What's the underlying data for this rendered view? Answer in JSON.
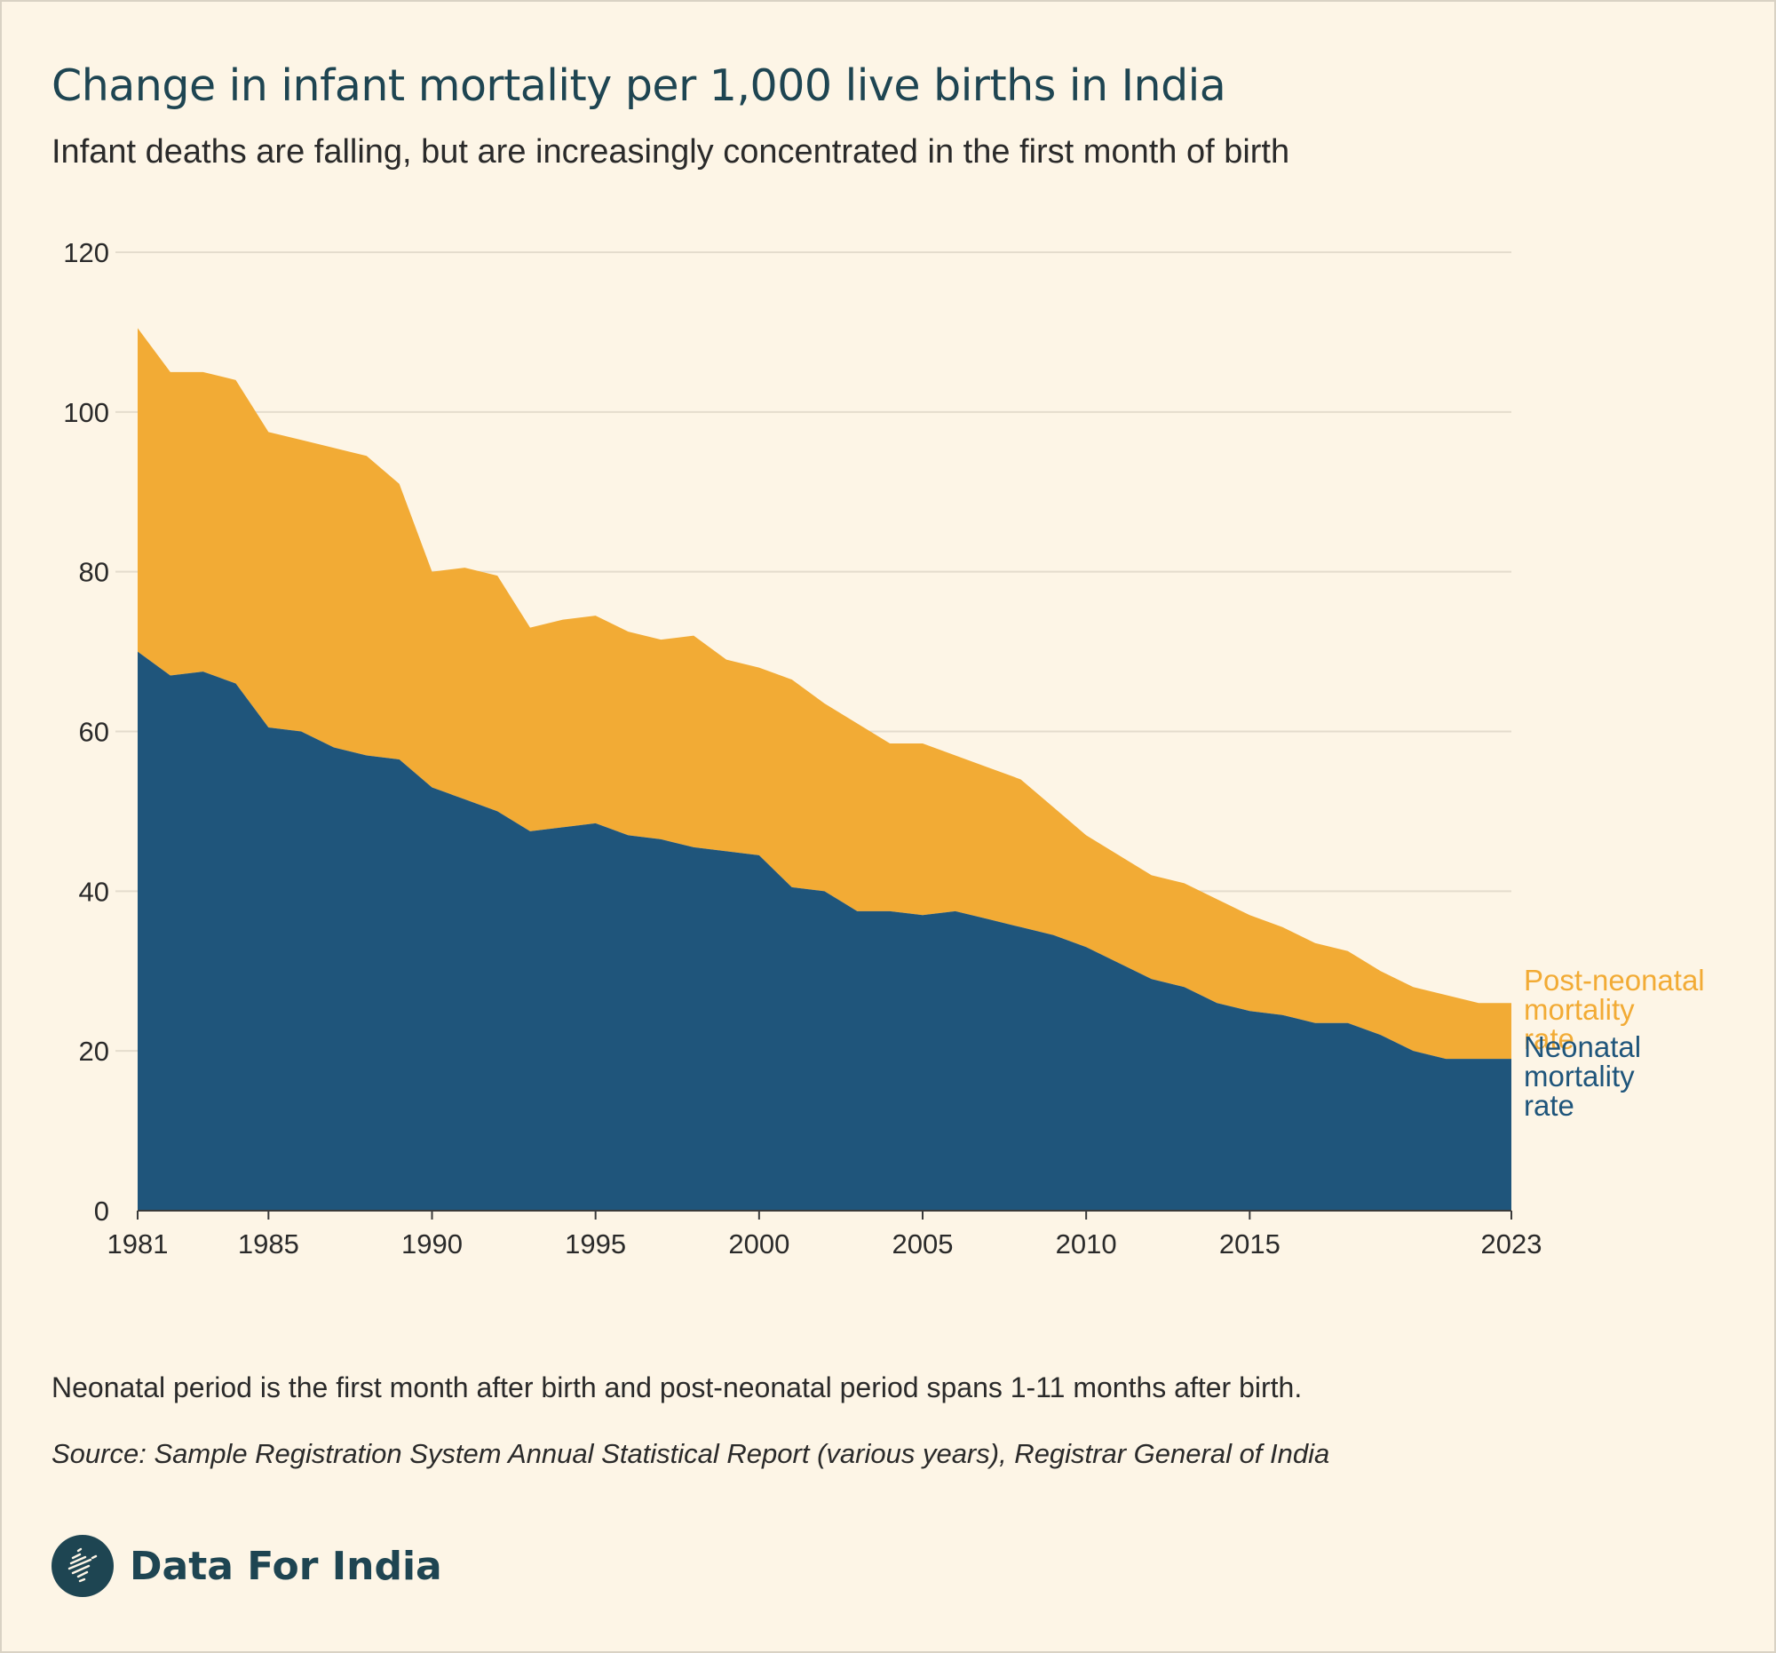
{
  "header": {
    "title": "Change in infant mortality per 1,000 live births in India",
    "subtitle": "Infant deaths are falling, but are increasingly concentrated in the first month of birth"
  },
  "footer": {
    "note": "Neonatal period is the first month after birth and post-neonatal period spans 1-11 months after birth.",
    "source": "Source: Sample Registration System Annual Statistical Report (various years), Registrar General of India",
    "brand": "Data For India",
    "brand_icon": "india-map-logo-icon"
  },
  "colors": {
    "background": "#fdf5e6",
    "neonatal": "#1f557b",
    "post_neonatal": "#f2ab35",
    "grid": "#e4dccd",
    "text": "#2a2a2a"
  },
  "chart_data": {
    "type": "area",
    "stacked": true,
    "title": "Change in infant mortality per 1,000 live births in India",
    "xlabel": "",
    "ylabel": "",
    "ylim": [
      0,
      120
    ],
    "xlim": [
      1981,
      2023
    ],
    "y_ticks": [
      0,
      20,
      40,
      60,
      80,
      100,
      120
    ],
    "x_ticks": [
      "1981",
      "1985",
      "1990",
      "1995",
      "2000",
      "2005",
      "2010",
      "2015",
      "2023"
    ],
    "grid": true,
    "x": [
      1981,
      1982,
      1983,
      1984,
      1985,
      1986,
      1987,
      1988,
      1989,
      1990,
      1991,
      1992,
      1993,
      1994,
      1995,
      1996,
      1997,
      1998,
      1999,
      2000,
      2001,
      2002,
      2003,
      2004,
      2005,
      2006,
      2007,
      2008,
      2009,
      2010,
      2011,
      2012,
      2013,
      2014,
      2015,
      2016,
      2017,
      2018,
      2019,
      2020,
      2021,
      2022,
      2023
    ],
    "series": [
      {
        "name": "Neonatal mortality rate",
        "label_lines": [
          "Neonatal",
          "mortality",
          "rate"
        ],
        "values": [
          70,
          67,
          67.5,
          66,
          60.5,
          60,
          58,
          57,
          56.5,
          53,
          51.5,
          50,
          47.5,
          48,
          48.5,
          47,
          46.5,
          45.5,
          45,
          44.5,
          40.5,
          40,
          37.5,
          37.5,
          37,
          37.5,
          36.5,
          35.5,
          34.5,
          33,
          31,
          29,
          28,
          26,
          25,
          24.5,
          23.5,
          23.5,
          22,
          20,
          19,
          19,
          19
        ]
      },
      {
        "name": "Post-neonatal mortality rate",
        "label_lines": [
          "Post-neonatal",
          "mortality",
          "rate"
        ],
        "values": [
          40.5,
          38,
          37.5,
          38,
          37,
          36.5,
          37.5,
          37.5,
          34.5,
          27,
          29,
          29.5,
          25.5,
          26,
          26,
          25.5,
          25,
          26.5,
          24,
          23.5,
          26,
          23.5,
          23.5,
          21,
          21.5,
          19.5,
          19,
          18.5,
          16,
          14,
          13.5,
          13,
          13,
          13,
          12,
          11,
          10,
          9,
          8,
          8,
          8,
          7,
          7
        ]
      }
    ]
  }
}
